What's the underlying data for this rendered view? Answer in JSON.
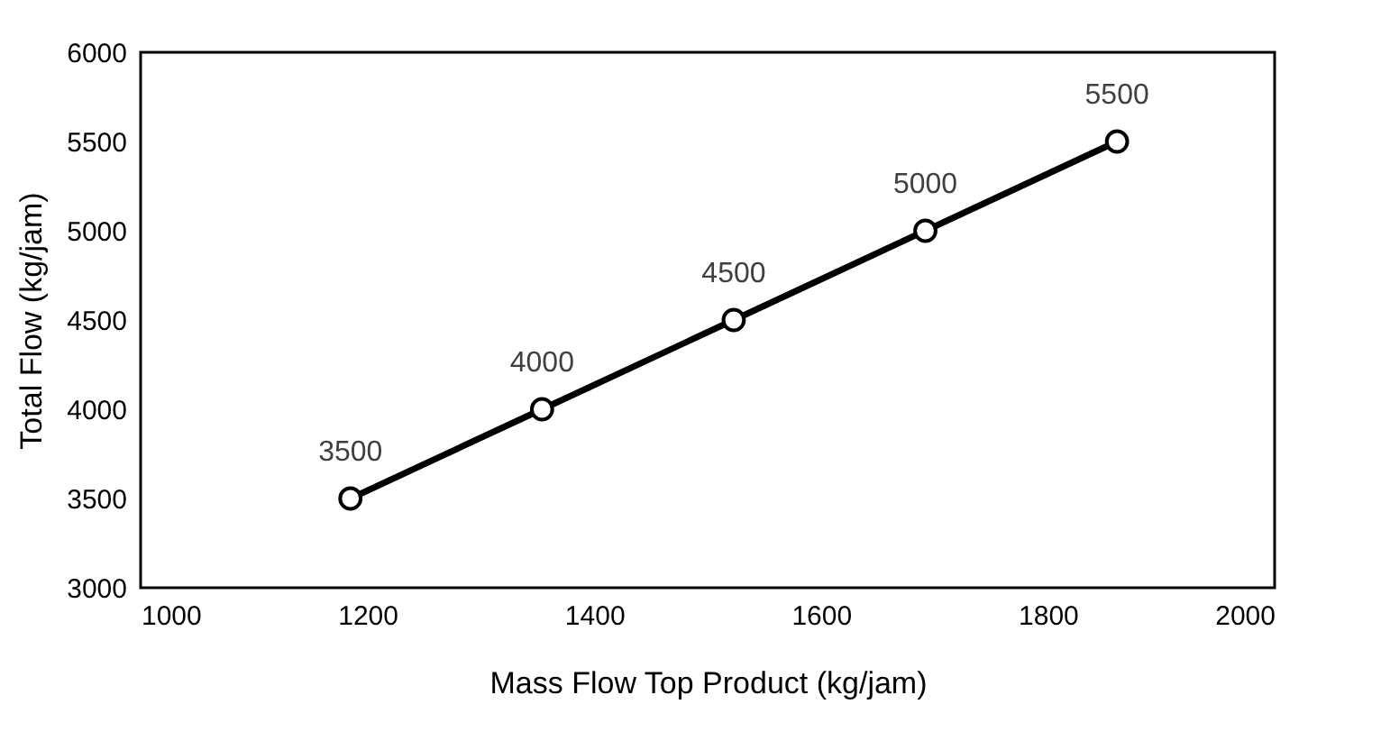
{
  "chart_data": {
    "type": "line",
    "xlabel": "Mass Flow Top Product (kg/jam)",
    "ylabel": "Total Flow (kg/jam)",
    "x": [
      1185,
      1354,
      1523,
      1692,
      1861
    ],
    "series": [
      {
        "color": "#000000",
        "values": [
          3500,
          4000,
          4500,
          5000,
          5500
        ]
      }
    ],
    "xlim": [
      1000,
      2000
    ],
    "xticks": [
      1000,
      1200,
      1400,
      1600,
      1800,
      2000
    ],
    "ylim": [
      3000,
      6000
    ],
    "yticks": [
      3000,
      3500,
      4000,
      4500,
      5000,
      5500,
      6000
    ],
    "grid": false,
    "marker": "circle",
    "line_style": "solid",
    "data_labels": true
  }
}
